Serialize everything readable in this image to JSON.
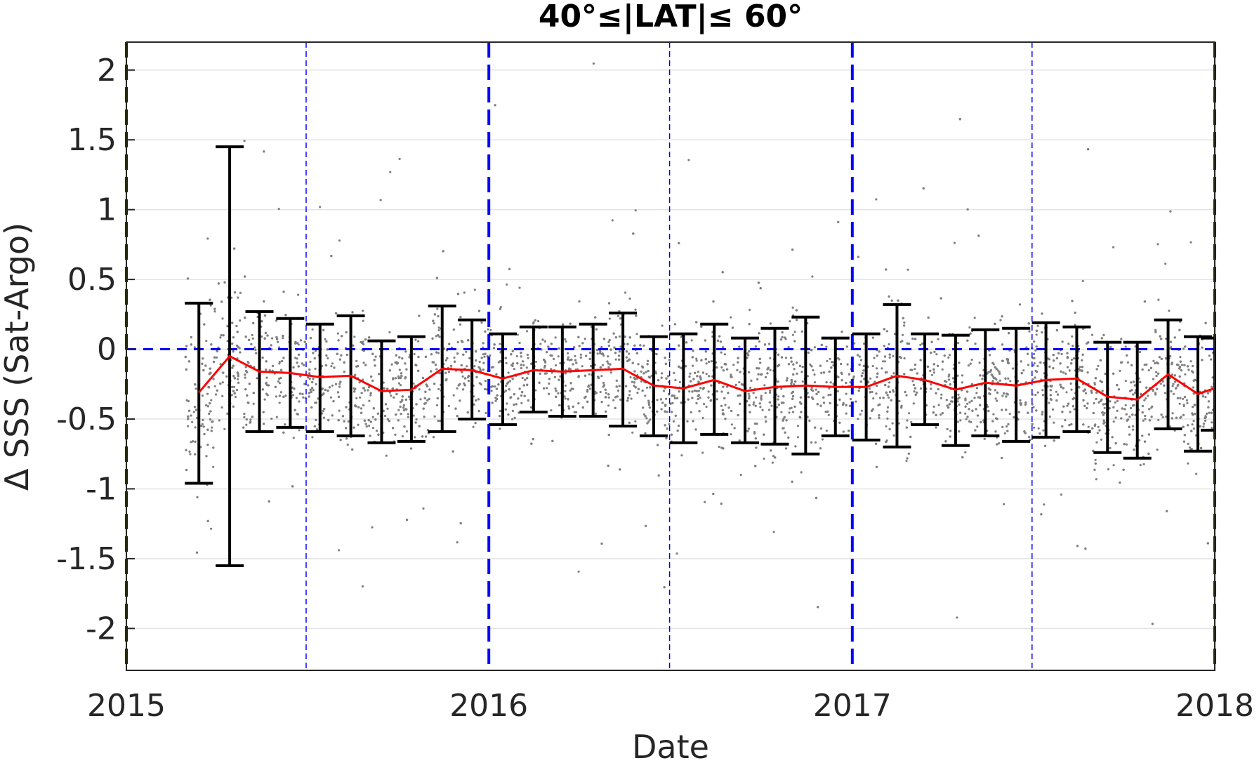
{
  "chart_data": {
    "type": "scatter",
    "title": "40°≤|LAT|≤ 60°",
    "xlabel": "Date",
    "ylabel": "Δ SSS (Sat-Argo)",
    "xlim": [
      "2015-01-01",
      "2018-01-01"
    ],
    "ylim": [
      -2.3,
      2.2
    ],
    "x_ticks": [
      "2015",
      "2016",
      "2017",
      "2018"
    ],
    "y_ticks": [
      "2",
      "1.5",
      "1",
      "0.5",
      "0",
      "-0.5",
      "-1",
      "-1.5",
      "-2"
    ],
    "y_tick_values": [
      2,
      1.5,
      1,
      0.5,
      0,
      -0.5,
      -1,
      -1.5,
      -2
    ],
    "grid": "horizontal",
    "zero_line": {
      "y": 0,
      "color": "#0000ff",
      "style": "dashed"
    },
    "year_lines": {
      "dates": [
        "2015-01-01",
        "2016-01-01",
        "2017-01-01",
        "2018-01-01"
      ],
      "color": "#0000ff",
      "style": "dashed-thick"
    },
    "midyear_lines": {
      "dates": [
        "2015-07-01",
        "2016-07-01",
        "2017-07-01"
      ],
      "color": "#0000ff",
      "style": "dashed-thin"
    },
    "scatter_color": "#808080",
    "mean_line_color": "#ff0000",
    "errorbar_color": "#000000",
    "monthly_stats": [
      {
        "date": "2015-03-15",
        "mean": -0.31,
        "low": -0.96,
        "high": 0.33
      },
      {
        "date": "2015-04-15",
        "mean": -0.05,
        "low": -1.55,
        "high": 1.45
      },
      {
        "date": "2015-05-15",
        "mean": -0.16,
        "low": -0.59,
        "high": 0.27
      },
      {
        "date": "2015-06-15",
        "mean": -0.17,
        "low": -0.56,
        "high": 0.22
      },
      {
        "date": "2015-07-15",
        "mean": -0.2,
        "low": -0.59,
        "high": 0.18
      },
      {
        "date": "2015-08-15",
        "mean": -0.19,
        "low": -0.62,
        "high": 0.24
      },
      {
        "date": "2015-09-15",
        "mean": -0.3,
        "low": -0.67,
        "high": 0.06
      },
      {
        "date": "2015-10-15",
        "mean": -0.29,
        "low": -0.66,
        "high": 0.09
      },
      {
        "date": "2015-11-15",
        "mean": -0.14,
        "low": -0.59,
        "high": 0.31
      },
      {
        "date": "2015-12-15",
        "mean": -0.15,
        "low": -0.5,
        "high": 0.21
      },
      {
        "date": "2016-01-15",
        "mean": -0.21,
        "low": -0.54,
        "high": 0.11
      },
      {
        "date": "2016-02-15",
        "mean": -0.15,
        "low": -0.45,
        "high": 0.16
      },
      {
        "date": "2016-03-15",
        "mean": -0.16,
        "low": -0.48,
        "high": 0.16
      },
      {
        "date": "2016-04-15",
        "mean": -0.15,
        "low": -0.48,
        "high": 0.18
      },
      {
        "date": "2016-05-15",
        "mean": -0.14,
        "low": -0.55,
        "high": 0.26
      },
      {
        "date": "2016-06-15",
        "mean": -0.26,
        "low": -0.62,
        "high": 0.09
      },
      {
        "date": "2016-07-15",
        "mean": -0.28,
        "low": -0.67,
        "high": 0.11
      },
      {
        "date": "2016-08-15",
        "mean": -0.22,
        "low": -0.61,
        "high": 0.18
      },
      {
        "date": "2016-09-15",
        "mean": -0.3,
        "low": -0.67,
        "high": 0.08
      },
      {
        "date": "2016-10-15",
        "mean": -0.27,
        "low": -0.68,
        "high": 0.15
      },
      {
        "date": "2016-11-15",
        "mean": -0.26,
        "low": -0.75,
        "high": 0.23
      },
      {
        "date": "2016-12-15",
        "mean": -0.27,
        "low": -0.62,
        "high": 0.08
      },
      {
        "date": "2017-01-15",
        "mean": -0.27,
        "low": -0.65,
        "high": 0.11
      },
      {
        "date": "2017-02-15",
        "mean": -0.19,
        "low": -0.7,
        "high": 0.32
      },
      {
        "date": "2017-03-15",
        "mean": -0.22,
        "low": -0.54,
        "high": 0.11
      },
      {
        "date": "2017-04-15",
        "mean": -0.29,
        "low": -0.69,
        "high": 0.1
      },
      {
        "date": "2017-05-15",
        "mean": -0.24,
        "low": -0.62,
        "high": 0.14
      },
      {
        "date": "2017-06-15",
        "mean": -0.26,
        "low": -0.66,
        "high": 0.15
      },
      {
        "date": "2017-07-15",
        "mean": -0.22,
        "low": -0.63,
        "high": 0.19
      },
      {
        "date": "2017-08-15",
        "mean": -0.21,
        "low": -0.59,
        "high": 0.16
      },
      {
        "date": "2017-09-15",
        "mean": -0.34,
        "low": -0.74,
        "high": 0.05
      },
      {
        "date": "2017-10-15",
        "mean": -0.36,
        "low": -0.78,
        "high": 0.05
      },
      {
        "date": "2017-11-15",
        "mean": -0.18,
        "low": -0.57,
        "high": 0.21
      },
      {
        "date": "2017-12-15",
        "mean": -0.32,
        "low": -0.73,
        "high": 0.09
      },
      {
        "date": "2018-01-01",
        "mean": -0.28,
        "low": -0.58,
        "high": 0.08
      }
    ]
  }
}
